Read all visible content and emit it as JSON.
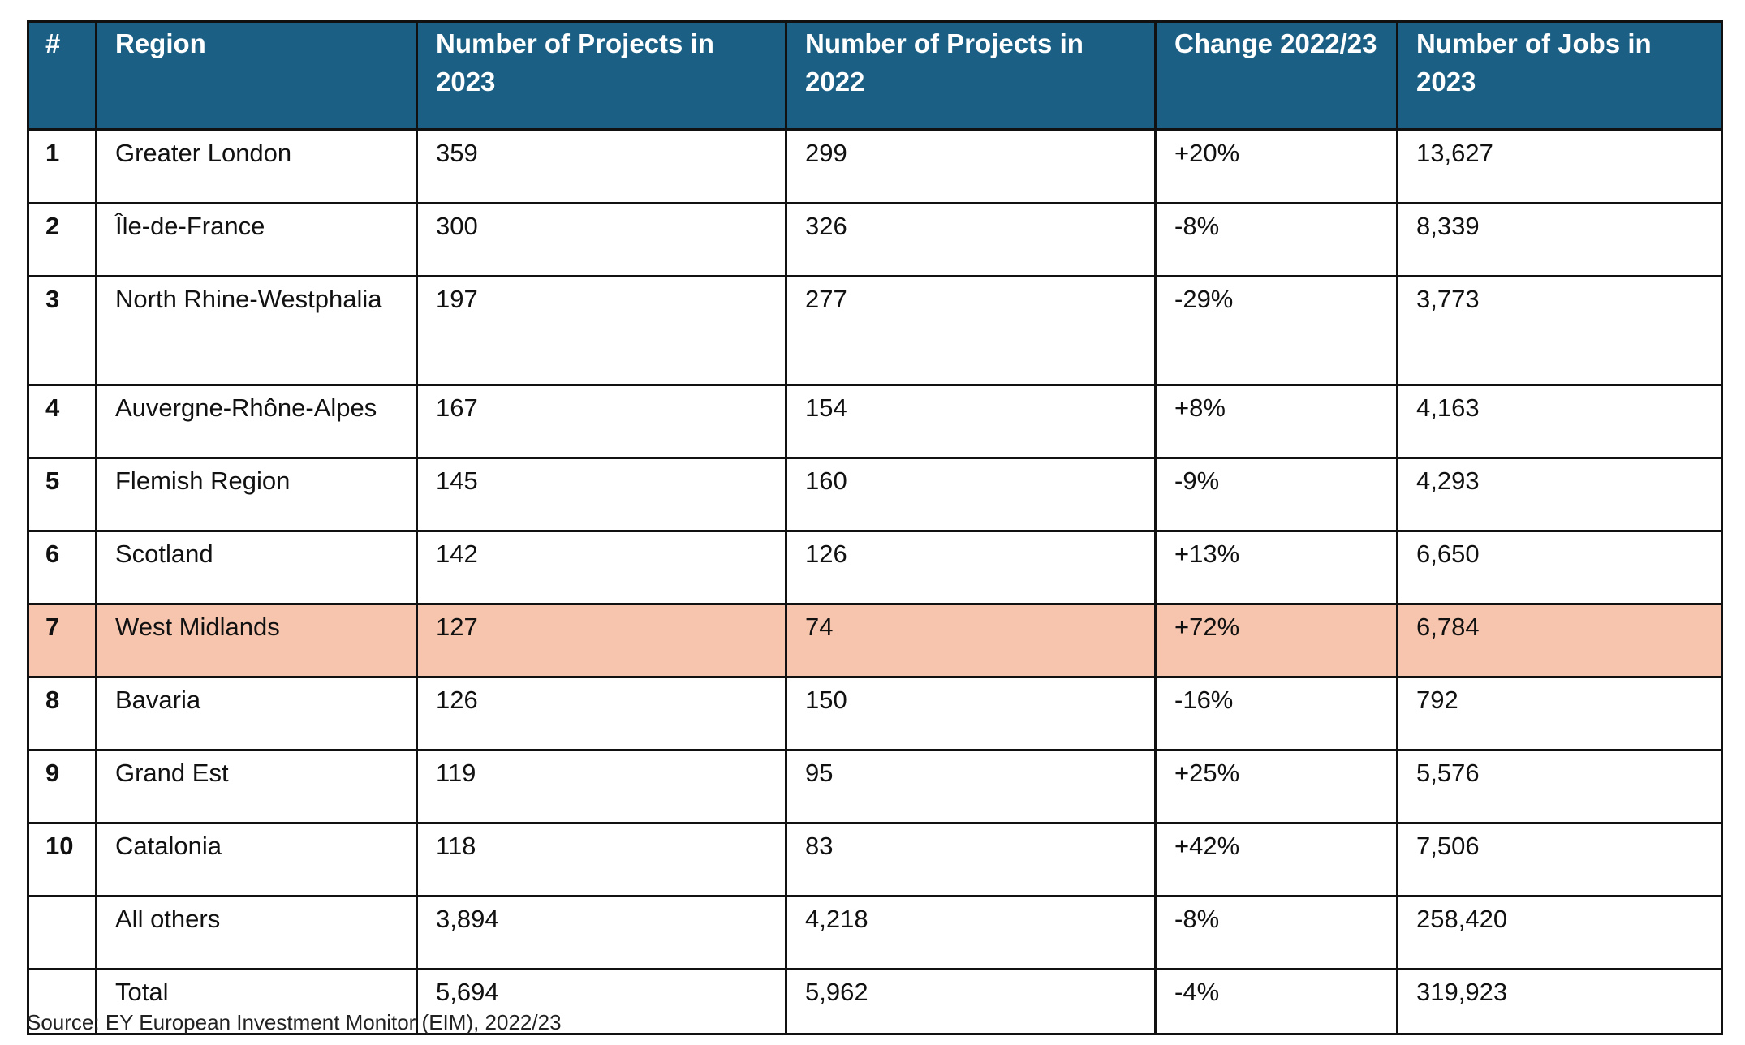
{
  "chart_data": {
    "type": "table",
    "columns": [
      "#",
      "Region",
      "Number of Projects in 2023",
      "Number of Projects in 2022",
      "Change 2022/23",
      "Number of Jobs in 2023"
    ],
    "rows": [
      [
        "1",
        "Greater London",
        "359",
        "299",
        "+20%",
        "13,627"
      ],
      [
        "2",
        "Île-de-France",
        "300",
        "326",
        "-8%",
        "8,339"
      ],
      [
        "3",
        "North Rhine-Westphalia",
        "197",
        "277",
        "-29%",
        "3,773"
      ],
      [
        "4",
        "Auvergne-Rhône-Alpes",
        "167",
        "154",
        "+8%",
        "4,163"
      ],
      [
        "5",
        "Flemish Region",
        "145",
        "160",
        "-9%",
        "4,293"
      ],
      [
        "6",
        "Scotland",
        "142",
        "126",
        "+13%",
        "6,650"
      ],
      [
        "7",
        "West Midlands",
        "127",
        "74",
        "+72%",
        "6,784"
      ],
      [
        "8",
        "Bavaria",
        "126",
        "150",
        "-16%",
        "792"
      ],
      [
        "9",
        "Grand Est",
        "119",
        "95",
        "+25%",
        "5,576"
      ],
      [
        "10",
        "Catalonia",
        "118",
        "83",
        "+42%",
        "7,506"
      ],
      [
        "",
        "All others",
        "3,894",
        "4,218",
        "-8%",
        "258,420"
      ],
      [
        "",
        "Total",
        "5,694",
        "5,962",
        "-4%",
        "319,923"
      ]
    ],
    "highlighted_row": 6,
    "source": "Source: EY European Investment Monitor (EIM), 2022/23"
  },
  "colors": {
    "header_background": "#1b6084",
    "header_text": "#ffffff",
    "highlight_row": "#f7c5ad",
    "border": "#111111"
  }
}
